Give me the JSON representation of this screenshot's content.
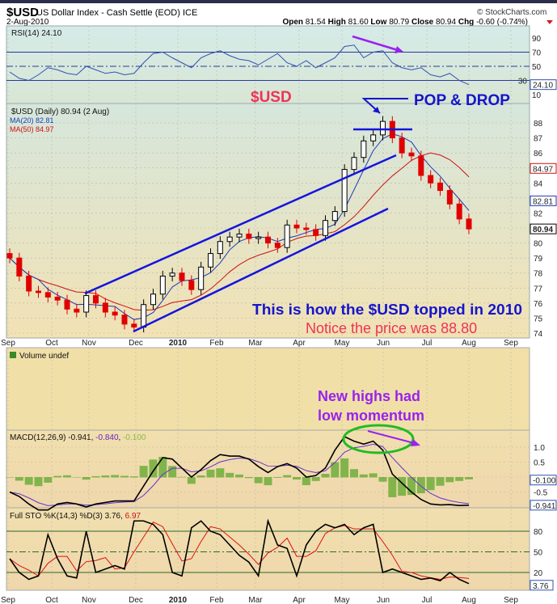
{
  "header": {
    "symbol": "$USD",
    "name": "US Dollar Index - Cash Settle (EOD) ICE",
    "date": "2-Aug-2010",
    "credit": "© StockCharts.com",
    "open_label": "Open",
    "open": "81.54",
    "high_label": "High",
    "high": "81.60",
    "low_label": "Low",
    "low": "80.79",
    "close_label": "Close",
    "close": "80.94",
    "chg_label": "Chg",
    "chg": "-0.60 (-0.74%)"
  },
  "annotations": {
    "usd_title": "$USD",
    "pop_drop": "POP & DROP",
    "topped": "This is how the $USD topped in 2010",
    "notice": "Notice the price was 88.80",
    "momentum_1": "New highs had",
    "momentum_2": "low momentum"
  },
  "colors": {
    "price_up": "#000000",
    "price_down": "#e00000",
    "ma20": "#1a3bb8",
    "ma50": "#cc1111",
    "annot_blue": "#1515cc",
    "annot_red": "#ee3355",
    "annot_purple": "#9922ee",
    "ellipse": "#22bb22",
    "hist": "#66aa33"
  },
  "chart_data": [
    {
      "type": "line",
      "title": "RSI(14) 24.10",
      "ylim": [
        0,
        100
      ],
      "yticks": [
        "90",
        "70",
        "50",
        "30",
        "10"
      ],
      "last_label": "24.10",
      "values": [
        42,
        33,
        30,
        38,
        48,
        45,
        40,
        38,
        50,
        45,
        40,
        42,
        38,
        40,
        55,
        68,
        70,
        62,
        55,
        48,
        62,
        68,
        72,
        65,
        60,
        58,
        52,
        60,
        68,
        55,
        50,
        58,
        48,
        55,
        62,
        78,
        80,
        62,
        70,
        72,
        55,
        48,
        45,
        48,
        38,
        35,
        40,
        30,
        24.1
      ]
    },
    {
      "type": "candlestick",
      "title": "$USD (Daily) 80.94 (2 Aug)",
      "legend": [
        "MA(20) 82.81",
        "MA(50) 84.97"
      ],
      "ylim": [
        74,
        88.8
      ],
      "yticks": [
        "88",
        "87",
        "86",
        "85",
        "84",
        "83",
        "82",
        "81",
        "80",
        "79",
        "78",
        "77",
        "76",
        "75",
        "74"
      ],
      "last_labels": {
        "ma50": "84.97",
        "ma20": "82.81",
        "close": "80.94"
      },
      "x_labels": [
        "Sep",
        "Oct",
        "Nov",
        "Dec",
        "2010",
        "Feb",
        "Mar",
        "Apr",
        "May",
        "Jun",
        "Jul",
        "Aug",
        "Sep"
      ],
      "closes_weekly": [
        79.0,
        77.8,
        76.8,
        76.7,
        76.4,
        76.2,
        75.6,
        75.4,
        76.5,
        76.0,
        75.4,
        75.2,
        74.6,
        74.4,
        75.9,
        76.6,
        77.8,
        78.0,
        77.5,
        76.9,
        78.4,
        79.3,
        80.1,
        80.4,
        80.6,
        80.3,
        80.4,
        80.0,
        79.7,
        81.2,
        81.0,
        80.9,
        80.5,
        81.5,
        82.1,
        84.9,
        85.7,
        86.8,
        87.2,
        88.1,
        87.0,
        86.0,
        85.8,
        84.5,
        84.0,
        83.5,
        82.6,
        81.6,
        80.94
      ]
    },
    {
      "type": "bar",
      "title": "Volume undef",
      "values": []
    },
    {
      "type": "line",
      "title": "MACD(12,26,9)",
      "legend_values": [
        "-0.941",
        "-0.840",
        "-0.100"
      ],
      "ylim": [
        -1.0,
        1.4
      ],
      "yticks": [
        "1.0",
        "0.5",
        "0.0",
        "-0.5"
      ],
      "last_labels": {
        "hist": "-0.100",
        "macd": "-0.941"
      },
      "macd": [
        -0.5,
        -0.65,
        -0.9,
        -1.1,
        -1.1,
        -0.9,
        -0.85,
        -0.9,
        -1.0,
        -0.9,
        -0.85,
        -0.8,
        -0.8,
        -0.8,
        -0.3,
        0.2,
        0.65,
        0.6,
        0.3,
        0.0,
        0.25,
        0.55,
        0.75,
        0.7,
        0.7,
        0.6,
        0.35,
        0.15,
        0.35,
        0.45,
        0.3,
        0.0,
        0.05,
        0.3,
        0.9,
        1.35,
        1.2,
        1.1,
        1.2,
        0.9,
        0.1,
        -0.2,
        -0.5,
        -0.75,
        -0.9,
        -0.93,
        -0.92,
        -0.95,
        -0.941
      ]
    },
    {
      "type": "line",
      "title": "Full STO %K(14,3) %D(3)",
      "legend_values": [
        "3.76",
        "6.97"
      ],
      "ylim": [
        0,
        100
      ],
      "yticks": [
        "80",
        "50",
        "20"
      ],
      "last_label": "3.76",
      "k": [
        40,
        20,
        10,
        15,
        75,
        40,
        15,
        12,
        80,
        20,
        25,
        30,
        25,
        95,
        95,
        90,
        75,
        20,
        15,
        85,
        95,
        80,
        75,
        60,
        45,
        35,
        15,
        95,
        60,
        55,
        15,
        60,
        80,
        90,
        85,
        90,
        75,
        85,
        90,
        20,
        25,
        20,
        15,
        10,
        12,
        8,
        20,
        10,
        3.76
      ]
    }
  ]
}
